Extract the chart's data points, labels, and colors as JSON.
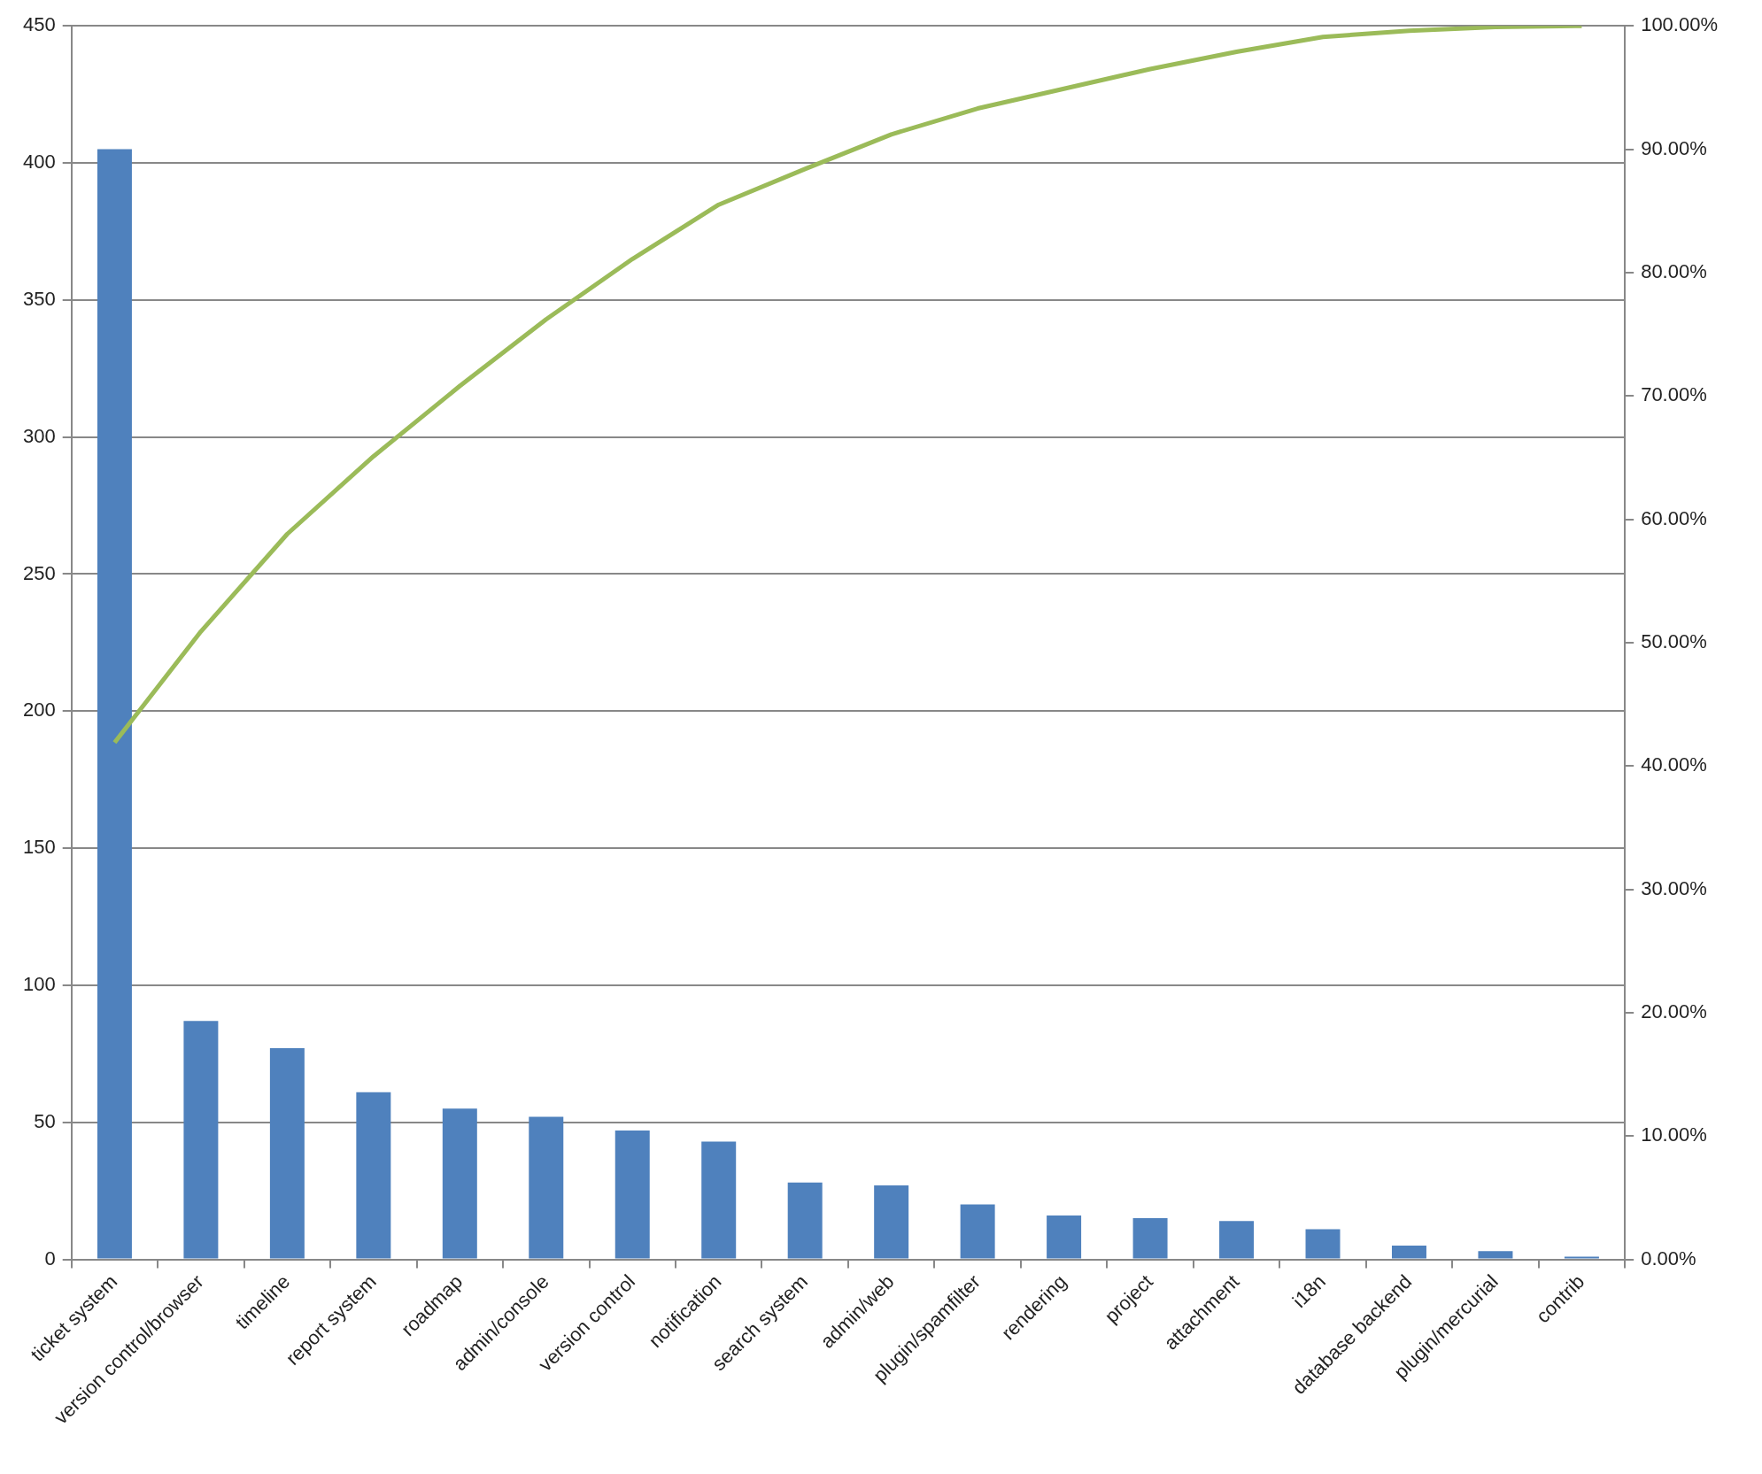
{
  "chart_data": {
    "type": "bar",
    "categories": [
      "ticket system",
      "version control/browser",
      "timeline",
      "report system",
      "roadmap",
      "admin/console",
      "version control",
      "notification",
      "search system",
      "admin/web",
      "plugin/spamfilter",
      "rendering",
      "project",
      "attachment",
      "i18n",
      "database backend",
      "plugin/mercurial",
      "contrib"
    ],
    "series": [
      {
        "color": "#4f81bd",
        "values": [
          405,
          87,
          77,
          61,
          55,
          52,
          47,
          43,
          28,
          27,
          20,
          16,
          15,
          14,
          11,
          5,
          3,
          1
        ]
      },
      {
        "type": "line",
        "axis": "y2",
        "color": "#9bbb59",
        "marker": "none",
        "values": [
          41.9,
          50.9,
          58.8,
          65.1,
          70.8,
          76.2,
          81.1,
          85.5,
          88.4,
          91.2,
          93.3,
          94.9,
          96.5,
          97.9,
          99.1,
          99.6,
          99.9,
          100.0
        ]
      }
    ],
    "ylim": [
      0,
      450
    ],
    "yticks": [
      0,
      50,
      100,
      150,
      200,
      250,
      300,
      350,
      400,
      450
    ],
    "y2lim": [
      0,
      100
    ],
    "y2ticks": [
      {
        "value": 0,
        "label": "0.00%"
      },
      {
        "value": 10,
        "label": "10.00%"
      },
      {
        "value": 20,
        "label": "20.00%"
      },
      {
        "value": 30,
        "label": "30.00%"
      },
      {
        "value": 40,
        "label": "40.00%"
      },
      {
        "value": 50,
        "label": "50.00%"
      },
      {
        "value": 60,
        "label": "60.00%"
      },
      {
        "value": 70,
        "label": "70.00%"
      },
      {
        "value": 80,
        "label": "80.00%"
      },
      {
        "value": 90,
        "label": "90.00%"
      },
      {
        "value": 100,
        "label": "100.00%"
      }
    ],
    "grid": "y"
  }
}
